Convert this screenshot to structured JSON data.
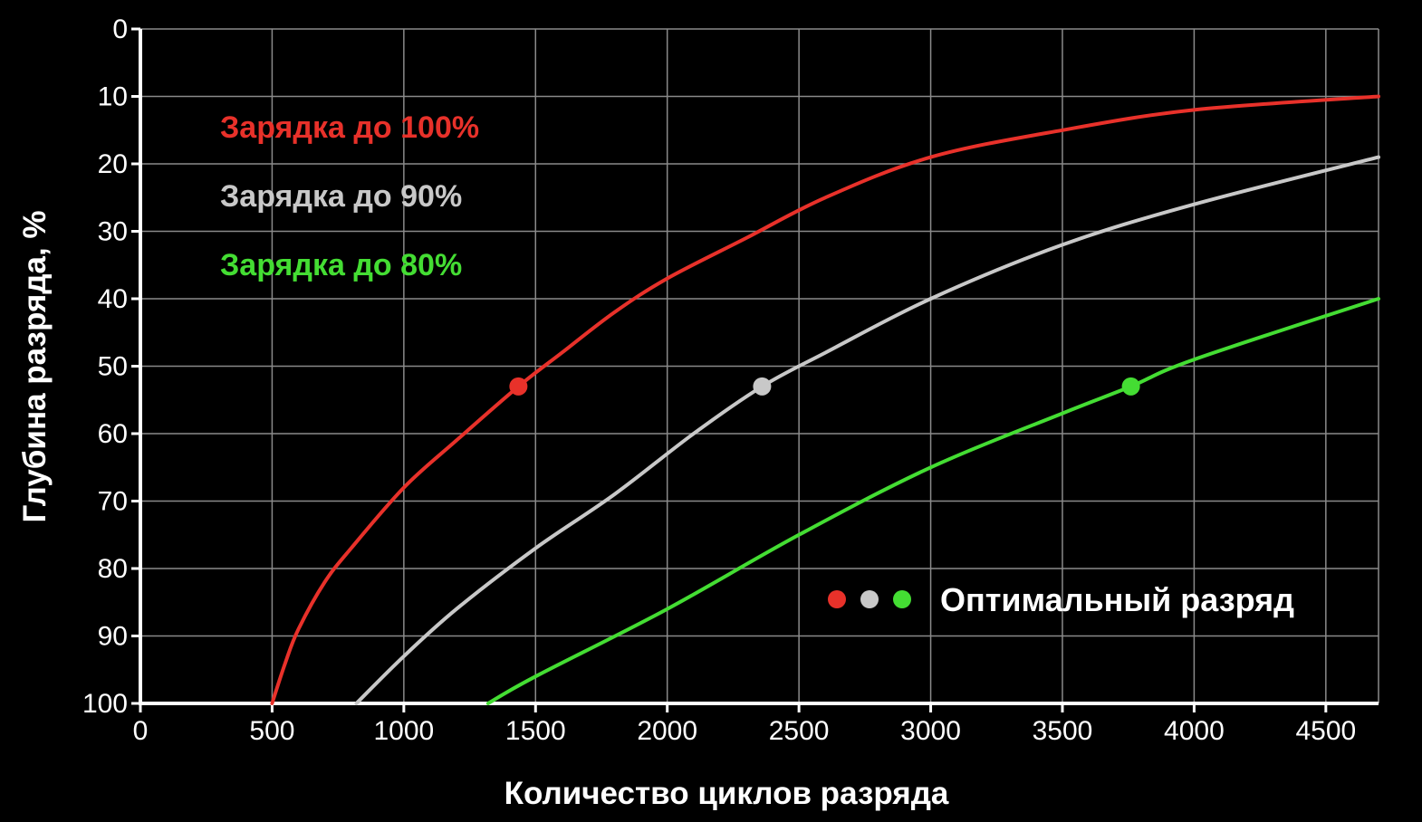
{
  "chart_data": {
    "type": "line",
    "title": "",
    "xlabel": "Количество циклов разряда",
    "ylabel": "Глубина разряда, %",
    "xlim": [
      0,
      4700
    ],
    "ylim": [
      0,
      100
    ],
    "y_inverted": true,
    "grid": true,
    "x_ticks": [
      0,
      500,
      1000,
      1500,
      2000,
      2500,
      3000,
      3500,
      4000,
      4500
    ],
    "y_ticks": [
      0,
      10,
      20,
      30,
      40,
      50,
      60,
      70,
      80,
      90,
      100
    ],
    "legend_placement": "top-left",
    "series": [
      {
        "name": "Зарядка до 100%",
        "color": "#e8312a",
        "x": [
          500,
          550,
          600,
          700,
          800,
          1000,
          1200,
          1435,
          1600,
          1800,
          2000,
          2300,
          2600,
          3000,
          3500,
          4000,
          4700
        ],
        "y": [
          100,
          94,
          89,
          82,
          77,
          68,
          61,
          53,
          48,
          42,
          37,
          31,
          25,
          19,
          15,
          12,
          10
        ],
        "optimal": {
          "x": 1435,
          "y": 53
        }
      },
      {
        "name": "Зарядка до 90%",
        "color": "#c8c8c8",
        "x": [
          820,
          1000,
          1200,
          1500,
          1800,
          2100,
          2360,
          2600,
          3000,
          3500,
          4000,
          4700
        ],
        "y": [
          100,
          93,
          86,
          77,
          69,
          60,
          53,
          48,
          40,
          32,
          26,
          19
        ],
        "optimal": {
          "x": 2360,
          "y": 53
        }
      },
      {
        "name": "Зарядка до 80%",
        "color": "#44dd33",
        "x": [
          1320,
          1500,
          2000,
          2500,
          3000,
          3500,
          3760,
          4000,
          4700
        ],
        "y": [
          100,
          96,
          86,
          75,
          65,
          57,
          53,
          49,
          40
        ],
        "optimal": {
          "x": 3760,
          "y": 53
        }
      }
    ],
    "optimal_label": "Оптимальный разряд"
  }
}
